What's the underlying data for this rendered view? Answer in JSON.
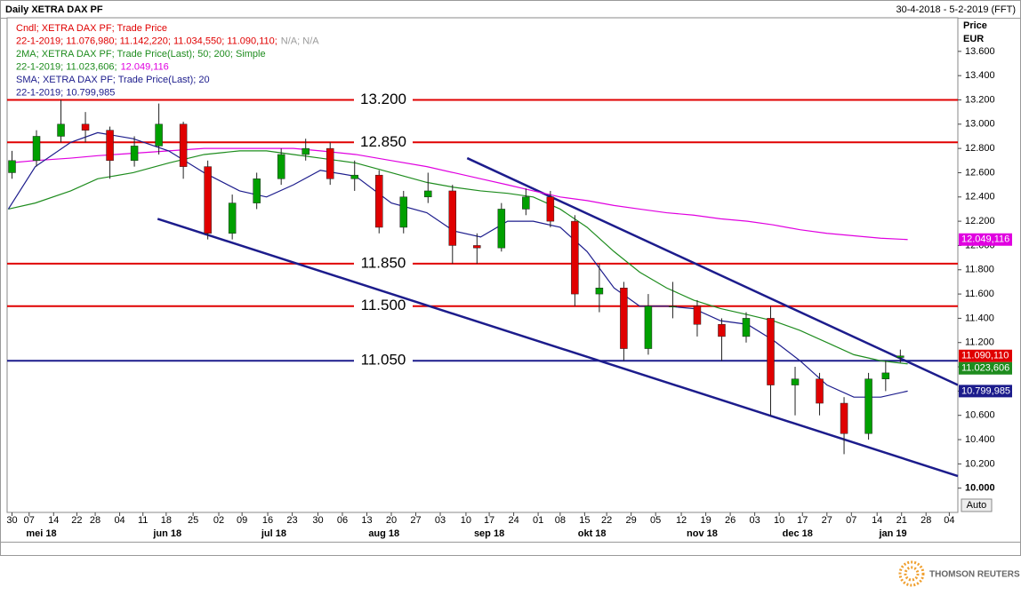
{
  "header": {
    "title": "Daily XETRA DAX PF",
    "range": "30-4-2018 - 5-2-2019 (FFT)"
  },
  "chart_data": {
    "type": "candlestick",
    "legend_lines": [
      [
        {
          "text": "Cndl; XETRA DAX PF; Trade Price",
          "color": "#e00000"
        }
      ],
      [
        {
          "text": "22-1-2019; 11.076,980; 11.142,220; 11.034,550; 11.090,110;",
          "color": "#e00000"
        },
        {
          "text": "N/A; N/A",
          "color": "#999999"
        }
      ],
      [
        {
          "text": "2MA; XETRA DAX PF; Trade Price(Last);  50; 200; Simple",
          "color": "#1e8c1e"
        }
      ],
      [
        {
          "text": "22-1-2019; 11.023,606;",
          "color": "#1e8c1e"
        },
        {
          "text": "12.049,116",
          "color": "#e000e0"
        }
      ],
      [
        {
          "text": "SMA; XETRA DAX PF; Trade Price(Last);  20",
          "color": "#1c1c8c"
        }
      ],
      [
        {
          "text": "22-1-2019; 10.799,985",
          "color": "#1c1c8c"
        }
      ]
    ],
    "ylabel": "Price",
    "yunit": "EUR",
    "ylim": [
      9.8,
      13.877
    ],
    "yticks": [
      {
        "value": 10.0,
        "label": "10.000"
      },
      {
        "value": 10.2,
        "label": "10.200"
      },
      {
        "value": 10.4,
        "label": "10.400"
      },
      {
        "value": 10.6,
        "label": "10.600"
      },
      {
        "value": 10.8,
        "label": "10.800"
      },
      {
        "value": 11.0,
        "label": "11.000"
      },
      {
        "value": 11.2,
        "label": "11.200"
      },
      {
        "value": 11.4,
        "label": "11.400"
      },
      {
        "value": 11.6,
        "label": "11.600"
      },
      {
        "value": 11.8,
        "label": "11.800"
      },
      {
        "value": 12.0,
        "label": "12.000"
      },
      {
        "value": 12.2,
        "label": "12.200"
      },
      {
        "value": 12.4,
        "label": "12.400"
      },
      {
        "value": 12.6,
        "label": "12.600"
      },
      {
        "value": 12.8,
        "label": "12.800"
      },
      {
        "value": 13.0,
        "label": "13.000"
      },
      {
        "value": 13.2,
        "label": "13.200"
      },
      {
        "value": 13.4,
        "label": "13.400"
      },
      {
        "value": 13.6,
        "label": "13.600"
      }
    ],
    "xlim": [
      -0.2,
      38.65
    ],
    "xticks": [
      {
        "value": 0,
        "label": "30"
      },
      {
        "value": 0.7,
        "label": "07"
      },
      {
        "value": 1.7,
        "label": "14"
      },
      {
        "value": 2.65,
        "label": "22"
      },
      {
        "value": 3.4,
        "label": "28"
      },
      {
        "value": 4.4,
        "label": "04"
      },
      {
        "value": 5.35,
        "label": "11"
      },
      {
        "value": 6.3,
        "label": "18"
      },
      {
        "value": 7.4,
        "label": "25"
      },
      {
        "value": 8.45,
        "label": "02"
      },
      {
        "value": 9.4,
        "label": "09"
      },
      {
        "value": 10.45,
        "label": "16"
      },
      {
        "value": 11.45,
        "label": "23"
      },
      {
        "value": 12.5,
        "label": "30"
      },
      {
        "value": 13.5,
        "label": "06"
      },
      {
        "value": 14.5,
        "label": "13"
      },
      {
        "value": 15.5,
        "label": "20"
      },
      {
        "value": 16.5,
        "label": "27"
      },
      {
        "value": 17.5,
        "label": "03"
      },
      {
        "value": 18.55,
        "label": "10"
      },
      {
        "value": 19.5,
        "label": "17"
      },
      {
        "value": 20.5,
        "label": "24"
      },
      {
        "value": 21.5,
        "label": "01"
      },
      {
        "value": 22.4,
        "label": "08"
      },
      {
        "value": 23.4,
        "label": "15"
      },
      {
        "value": 24.3,
        "label": "22"
      },
      {
        "value": 25.3,
        "label": "29"
      },
      {
        "value": 26.3,
        "label": "05"
      },
      {
        "value": 27.35,
        "label": "12"
      },
      {
        "value": 28.35,
        "label": "19"
      },
      {
        "value": 29.35,
        "label": "26"
      },
      {
        "value": 30.35,
        "label": "03"
      },
      {
        "value": 31.35,
        "label": "10"
      },
      {
        "value": 32.3,
        "label": "17"
      },
      {
        "value": 33.3,
        "label": "27"
      },
      {
        "value": 34.3,
        "label": "07"
      },
      {
        "value": 35.35,
        "label": "14"
      },
      {
        "value": 36.35,
        "label": "21"
      },
      {
        "value": 37.35,
        "label": "28"
      },
      {
        "value": 38.3,
        "label": "04"
      }
    ],
    "month_labels": [
      {
        "value": 1.2,
        "label": "mei 18"
      },
      {
        "value": 6.35,
        "label": "jun 18"
      },
      {
        "value": 10.7,
        "label": "jul 18"
      },
      {
        "value": 15.2,
        "label": "aug 18"
      },
      {
        "value": 19.5,
        "label": "sep 18"
      },
      {
        "value": 23.7,
        "label": "okt 18"
      },
      {
        "value": 28.2,
        "label": "nov 18"
      },
      {
        "value": 32.1,
        "label": "dec 18"
      },
      {
        "value": 36.0,
        "label": "jan 19"
      }
    ],
    "up_color": "#00a000",
    "down_color": "#e00000",
    "x": [
      0,
      1,
      2,
      3,
      4,
      5,
      6,
      7,
      8,
      9,
      10,
      11,
      12,
      13,
      14,
      15,
      16,
      17,
      18,
      19,
      20,
      21,
      22,
      23,
      24,
      25,
      26,
      27,
      28,
      29,
      30,
      31,
      32,
      33,
      34,
      35,
      35.7,
      36.3
    ],
    "open": [
      12.6,
      12.7,
      12.9,
      13.0,
      12.95,
      12.7,
      12.82,
      13.0,
      12.65,
      12.1,
      12.35,
      12.55,
      12.75,
      12.8,
      12.55,
      12.58,
      12.15,
      12.4,
      12.45,
      12.0,
      11.98,
      12.3,
      12.4,
      12.2,
      11.6,
      11.65,
      11.15,
      11.5,
      11.5,
      11.35,
      11.25,
      11.4,
      10.85,
      10.9,
      10.7,
      10.45,
      10.9,
      11.077
    ],
    "high": [
      12.78,
      12.95,
      13.2,
      13.1,
      12.98,
      12.9,
      13.17,
      13.02,
      12.7,
      12.42,
      12.6,
      12.8,
      12.88,
      12.85,
      12.7,
      12.62,
      12.45,
      12.6,
      12.5,
      12.1,
      12.35,
      12.47,
      12.45,
      12.25,
      11.85,
      11.7,
      11.6,
      11.7,
      11.55,
      11.4,
      11.45,
      11.5,
      11.0,
      10.95,
      10.75,
      10.95,
      11.05,
      11.142
    ],
    "low": [
      12.55,
      12.65,
      12.85,
      12.85,
      12.55,
      12.65,
      12.75,
      12.55,
      12.05,
      12.05,
      12.3,
      12.5,
      12.7,
      12.5,
      12.45,
      12.1,
      12.1,
      12.35,
      11.85,
      11.85,
      11.95,
      12.25,
      12.15,
      11.5,
      11.45,
      11.05,
      11.1,
      11.4,
      11.25,
      11.05,
      11.2,
      10.6,
      10.6,
      10.6,
      10.28,
      10.4,
      10.8,
      11.035
    ],
    "close": [
      12.7,
      12.9,
      13.0,
      12.95,
      12.7,
      12.82,
      13.0,
      12.65,
      12.1,
      12.35,
      12.55,
      12.75,
      12.8,
      12.55,
      12.58,
      12.15,
      12.4,
      12.45,
      12.0,
      11.98,
      12.3,
      12.4,
      12.2,
      11.6,
      11.65,
      11.15,
      11.5,
      11.5,
      11.35,
      11.25,
      11.4,
      10.85,
      10.9,
      10.7,
      10.45,
      10.9,
      10.95,
      11.09
    ],
    "close_label": "11.090,110",
    "series": [
      {
        "color": "#e000e0",
        "value_label": "12.049,116",
        "x": [
          -0.15,
          0.95,
          2.4,
          3.5,
          4.95,
          6.4,
          7.85,
          9.3,
          10.4,
          11.5,
          12.6,
          14.05,
          15.5,
          16.95,
          18.05,
          19.15,
          20.25,
          21.3,
          22.4,
          23.5,
          24.6,
          25.65,
          26.75,
          27.85,
          28.95,
          30.05,
          31.1,
          32.2,
          33.3,
          34.4,
          35.5,
          36.6
        ],
        "values": [
          12.68,
          12.7,
          12.72,
          12.74,
          12.76,
          12.78,
          12.8,
          12.8,
          12.8,
          12.8,
          12.78,
          12.75,
          12.7,
          12.65,
          12.6,
          12.55,
          12.5,
          12.45,
          12.4,
          12.37,
          12.33,
          12.3,
          12.27,
          12.25,
          12.22,
          12.2,
          12.17,
          12.13,
          12.1,
          12.08,
          12.06,
          12.049
        ]
      },
      {
        "color": "#1e8c1e",
        "value_label": "11.023,606",
        "x": [
          -0.15,
          0.95,
          2.4,
          3.5,
          4.95,
          6.4,
          7.85,
          9.3,
          10.4,
          11.5,
          12.6,
          14.05,
          15.5,
          16.95,
          18.05,
          19.15,
          20.25,
          21.3,
          22.4,
          23.5,
          24.6,
          25.65,
          26.75,
          27.85,
          28.95,
          30.05,
          31.1,
          32.2,
          33.3,
          34.4,
          35.5,
          36.6
        ],
        "values": [
          12.3,
          12.35,
          12.45,
          12.55,
          12.6,
          12.68,
          12.75,
          12.78,
          12.78,
          12.75,
          12.72,
          12.68,
          12.6,
          12.52,
          12.48,
          12.45,
          12.43,
          12.4,
          12.3,
          12.15,
          11.95,
          11.78,
          11.65,
          11.55,
          11.48,
          11.43,
          11.38,
          11.3,
          11.2,
          11.1,
          11.05,
          11.024
        ]
      },
      {
        "color": "#1c1c8c",
        "value_label": "10.799,985",
        "x": [
          -0.15,
          0.95,
          2.4,
          3.5,
          4.95,
          6.4,
          7.85,
          9.3,
          10.4,
          11.5,
          12.6,
          14.05,
          15.5,
          16.95,
          18.05,
          19.15,
          20.25,
          21.3,
          22.4,
          23.5,
          24.6,
          25.65,
          26.75,
          27.85,
          28.95,
          30.05,
          31.1,
          32.2,
          33.3,
          34.4,
          35.5,
          36.6
        ],
        "values": [
          12.3,
          12.65,
          12.85,
          12.93,
          12.88,
          12.78,
          12.6,
          12.45,
          12.4,
          12.5,
          12.62,
          12.57,
          12.35,
          12.27,
          12.12,
          12.07,
          12.2,
          12.2,
          12.15,
          11.95,
          11.65,
          11.5,
          11.5,
          11.48,
          11.38,
          11.35,
          11.22,
          11.05,
          10.85,
          10.75,
          10.75,
          10.8
        ]
      }
    ],
    "levels": [
      {
        "value": 13.2,
        "label": "13.200",
        "color": "#e00000"
      },
      {
        "value": 12.85,
        "label": "12.850",
        "color": "#e00000"
      },
      {
        "value": 11.85,
        "label": "11.850",
        "color": "#e00000"
      },
      {
        "value": 11.5,
        "label": "11.500",
        "color": "#e00000"
      },
      {
        "value": 11.05,
        "label": "11.050",
        "color": "#1c1c8c"
      }
    ],
    "trend_lines": [
      {
        "color": "#1c1c8c",
        "x": [
          18.6,
          38.65
        ],
        "values": [
          12.72,
          10.85
        ]
      },
      {
        "color": "#1c1c8c",
        "x": [
          5.95,
          38.65
        ],
        "values": [
          12.22,
          10.1
        ]
      }
    ],
    "auto_button": "Auto"
  },
  "logo": "THOMSON REUTERS"
}
